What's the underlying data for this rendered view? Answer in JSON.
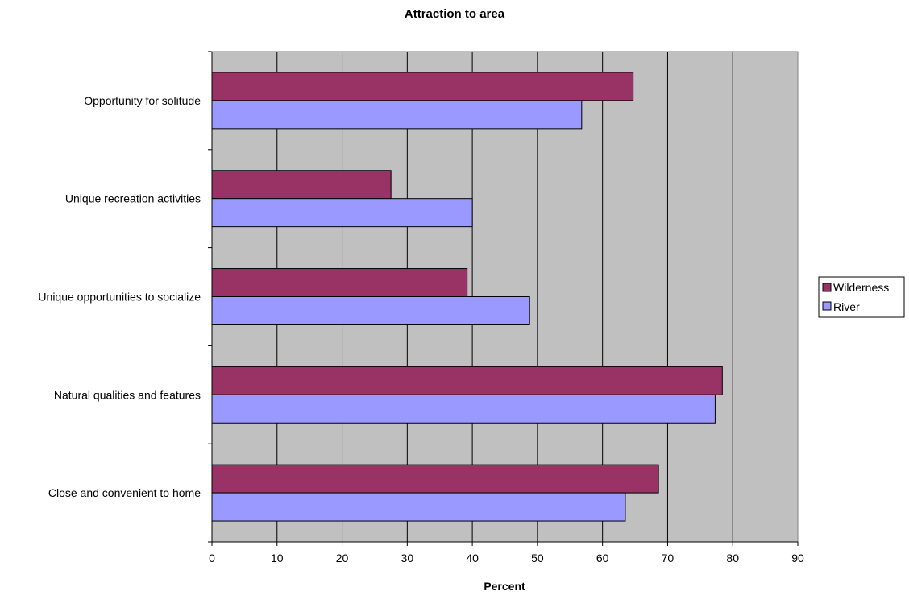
{
  "chart_data": {
    "type": "bar",
    "orientation": "horizontal",
    "title": "Attraction to area",
    "xlabel": "Percent",
    "ylabel": "",
    "xlim": [
      0,
      90
    ],
    "x_ticks": [
      0,
      10,
      20,
      30,
      40,
      50,
      60,
      70,
      80,
      90
    ],
    "x_tick_labels": [
      "0",
      "10",
      "20",
      "30",
      "40",
      "50",
      "60",
      "70",
      "80",
      "90"
    ],
    "categories": [
      "Opportunity for solitude",
      "Unique recreation activities",
      "Unique opportunities to socialize",
      "Natural qualities and features",
      "Close and convenient to home"
    ],
    "series": [
      {
        "name": "Wilderness",
        "color": "#993366",
        "values": [
          64.7,
          27.5,
          39.2,
          78.4,
          68.6
        ]
      },
      {
        "name": "River",
        "color": "#9999ff",
        "values": [
          56.8,
          40.0,
          48.8,
          77.3,
          63.5
        ]
      }
    ],
    "plot_background": "#c0c0c0",
    "grid": {
      "vertical": true,
      "horizontal": false
    },
    "legend_position": "right"
  }
}
